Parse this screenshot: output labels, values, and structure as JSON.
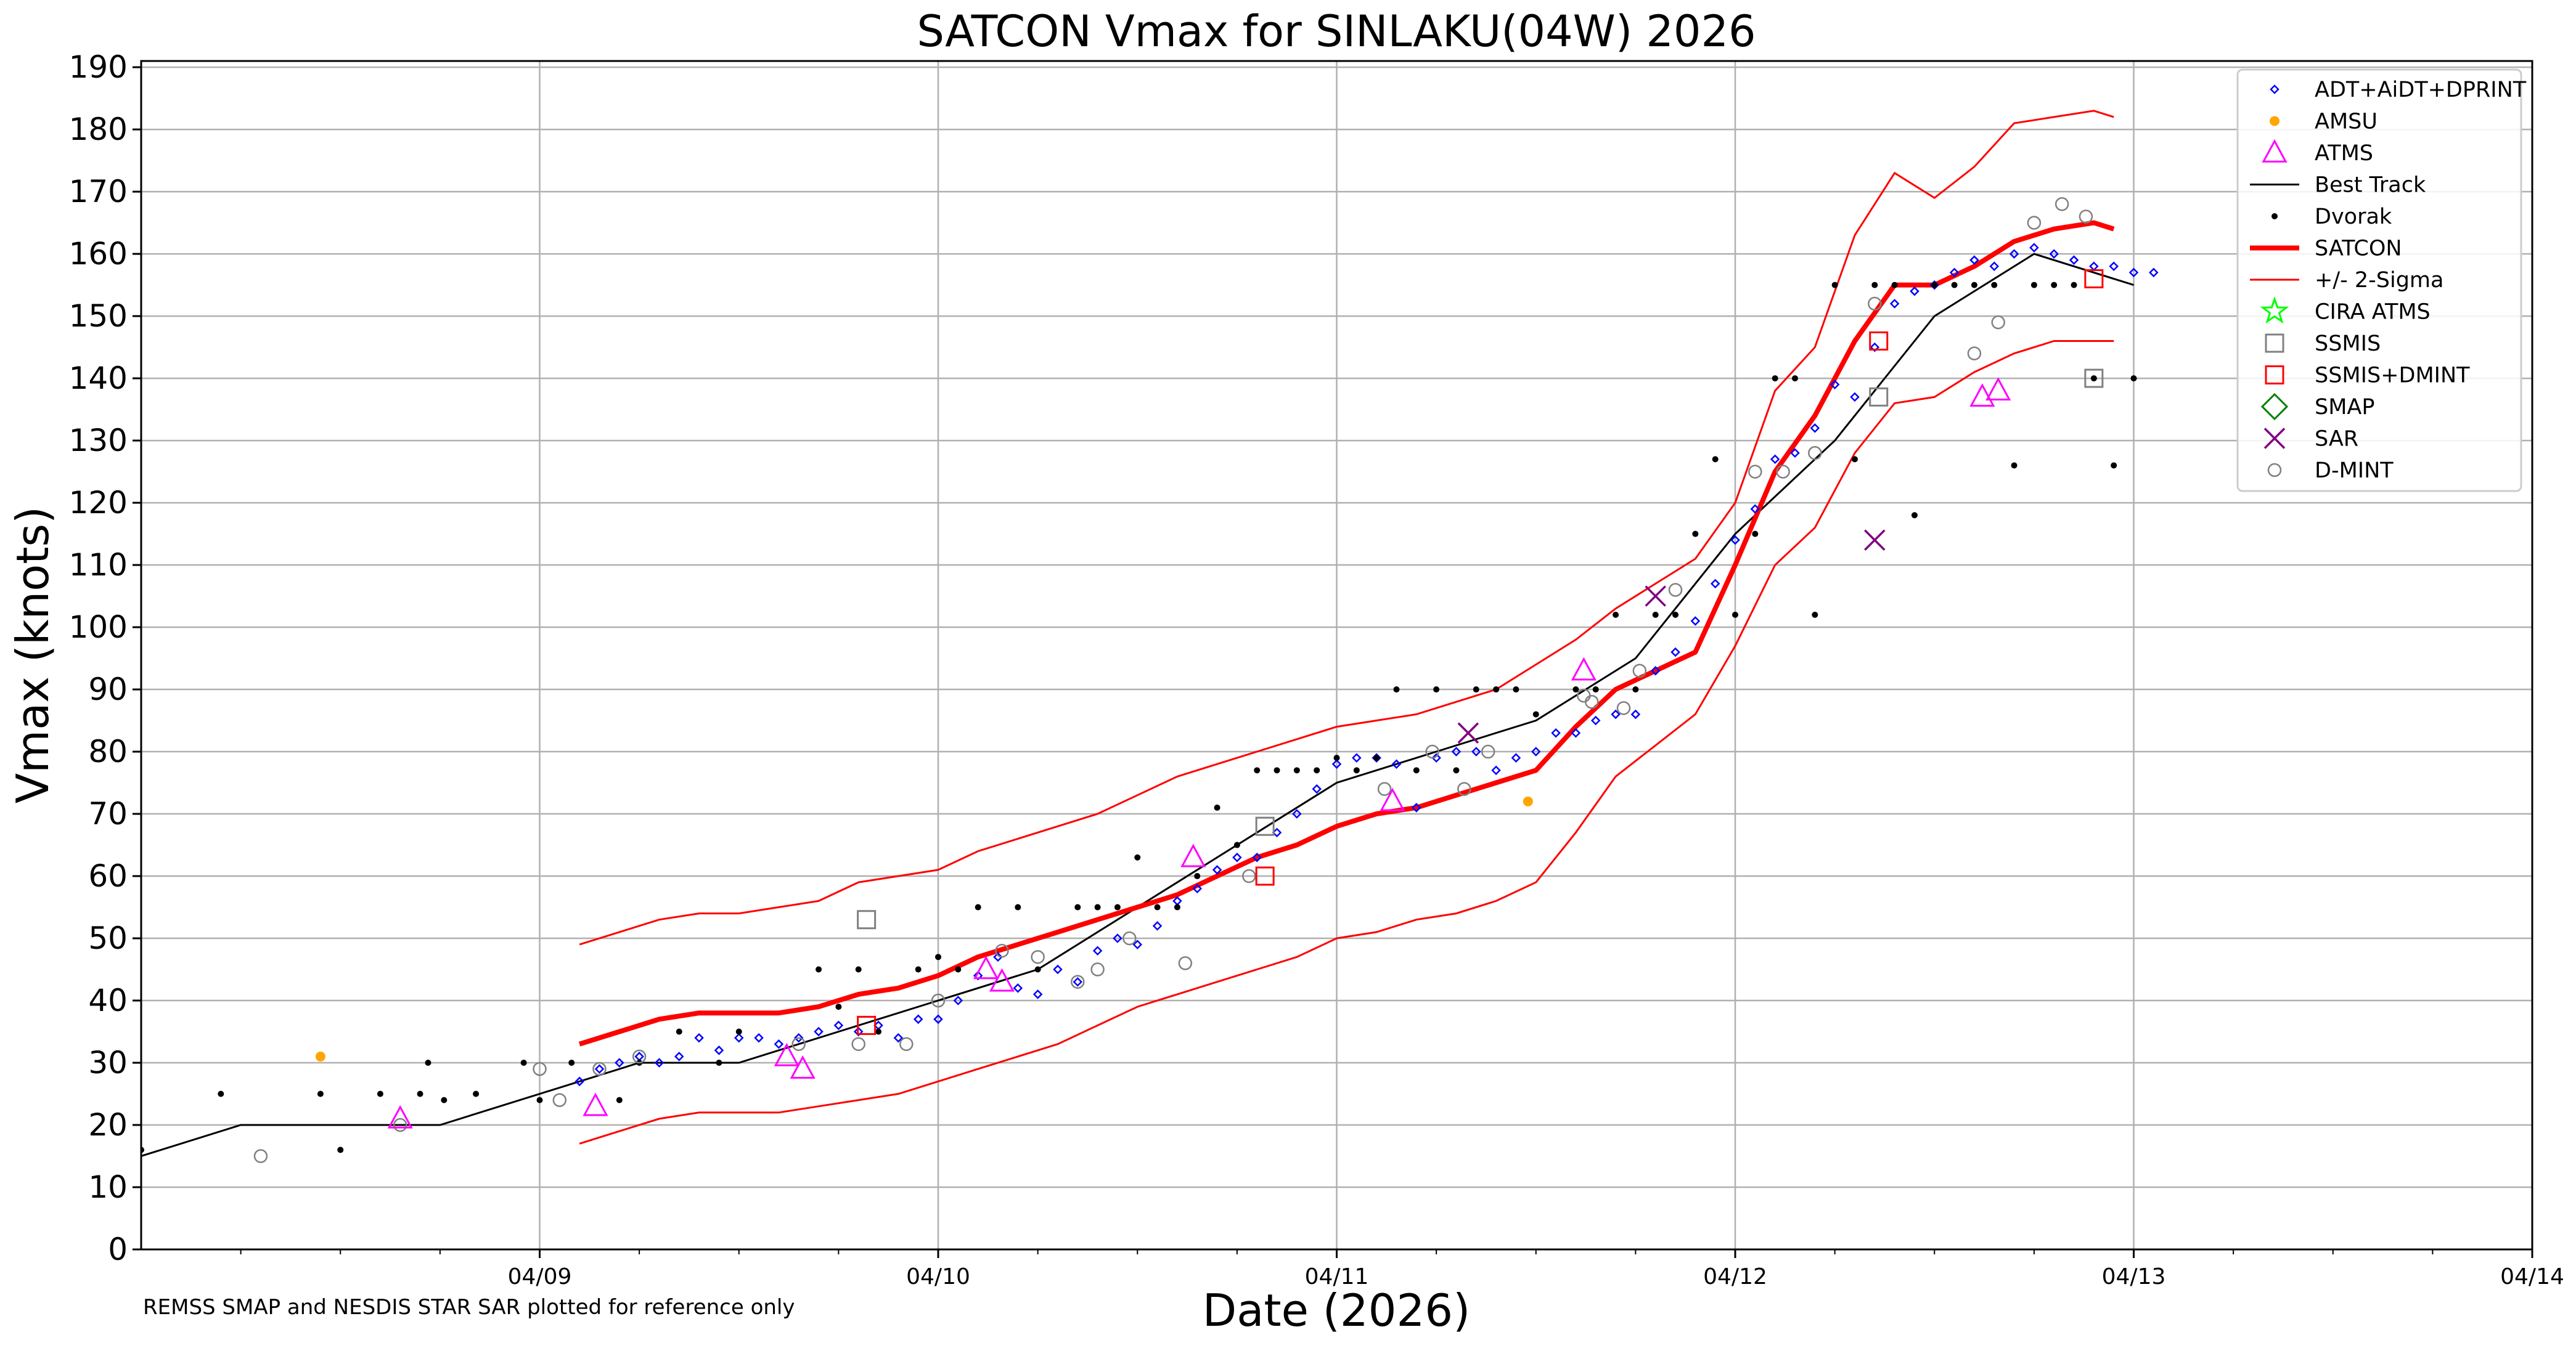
{
  "chart_data": {
    "type": "scatter",
    "title": "SATCON Vmax for SINLAKU(04W) 2026",
    "xlabel": "Date (2026)",
    "ylabel": "Vmax (knots)",
    "footnote": "REMSS SMAP and NESDIS STAR SAR plotted for reference only",
    "xlim": [
      8.0,
      14.0
    ],
    "ylim": [
      0,
      191
    ],
    "x_ticks": [
      9,
      10,
      11,
      12,
      13,
      14
    ],
    "x_tick_labels": [
      "04/09",
      "04/10",
      "04/11",
      "04/12",
      "04/13",
      "04/14"
    ],
    "y_ticks": [
      0,
      10,
      20,
      30,
      40,
      50,
      60,
      70,
      80,
      90,
      100,
      110,
      120,
      130,
      140,
      150,
      160,
      170,
      180,
      190
    ],
    "y_tick_labels": [
      "0",
      "10",
      "20",
      "30",
      "40",
      "50",
      "60",
      "70",
      "80",
      "90",
      "100",
      "110",
      "120",
      "130",
      "140",
      "150",
      "160",
      "170",
      "180",
      "190"
    ],
    "grid": true,
    "legend_position": "top-right",
    "colors": {
      "adt": "#0000ff",
      "amsu": "#ffa500",
      "atms": "#ff00ff",
      "best_track": "#000000",
      "dvorak": "#000000",
      "satcon": "#ff0000",
      "sigma": "#ff0000",
      "cira": "#00ff00",
      "ssmis": "#808080",
      "ssmis_dmint": "#ff0000",
      "smap": "#008000",
      "sar": "#800080",
      "dmint": "#808080"
    },
    "legend": [
      {
        "key": "adt",
        "label": "ADT+AiDT+DPRINT"
      },
      {
        "key": "amsu",
        "label": "AMSU"
      },
      {
        "key": "atms",
        "label": "ATMS"
      },
      {
        "key": "best_track",
        "label": "Best Track"
      },
      {
        "key": "dvorak",
        "label": "Dvorak"
      },
      {
        "key": "satcon",
        "label": "SATCON"
      },
      {
        "key": "sigma",
        "label": "+/- 2-Sigma"
      },
      {
        "key": "cira",
        "label": "CIRA ATMS"
      },
      {
        "key": "ssmis",
        "label": "SSMIS"
      },
      {
        "key": "ssmis_dmint",
        "label": "SSMIS+DMINT"
      },
      {
        "key": "smap",
        "label": "SMAP"
      },
      {
        "key": "sar",
        "label": "SAR"
      },
      {
        "key": "dmint",
        "label": "D-MINT"
      }
    ],
    "series": {
      "best_track": {
        "x": [
          8.0,
          8.25,
          8.5,
          8.75,
          9.0,
          9.25,
          9.5,
          9.75,
          10.0,
          10.25,
          10.5,
          10.75,
          11.0,
          11.25,
          11.5,
          11.75,
          12.0,
          12.25,
          12.5,
          12.75,
          13.0
        ],
        "y": [
          15,
          20,
          20,
          20,
          25,
          30,
          30,
          35,
          40,
          45,
          55,
          65,
          75,
          80,
          85,
          95,
          115,
          130,
          150,
          160,
          155
        ]
      },
      "satcon": {
        "x": [
          9.1,
          9.2,
          9.3,
          9.4,
          9.5,
          9.6,
          9.7,
          9.8,
          9.9,
          10.0,
          10.1,
          10.2,
          10.3,
          10.4,
          10.5,
          10.6,
          10.7,
          10.8,
          10.9,
          11.0,
          11.1,
          11.2,
          11.3,
          11.4,
          11.5,
          11.6,
          11.7,
          11.8,
          11.9,
          12.0,
          12.1,
          12.2,
          12.3,
          12.4,
          12.5,
          12.6,
          12.7,
          12.8,
          12.9,
          12.95
        ],
        "y": [
          33,
          35,
          37,
          38,
          38,
          38,
          39,
          41,
          42,
          44,
          47,
          49,
          51,
          53,
          55,
          57,
          60,
          63,
          65,
          68,
          70,
          71,
          73,
          75,
          77,
          84,
          90,
          93,
          96,
          110,
          125,
          134,
          146,
          155,
          155,
          158,
          162,
          164,
          165,
          164
        ]
      },
      "sigma_upper": {
        "x": [
          9.1,
          9.2,
          9.3,
          9.4,
          9.5,
          9.6,
          9.7,
          9.8,
          9.9,
          10.0,
          10.1,
          10.2,
          10.3,
          10.4,
          10.5,
          10.6,
          10.7,
          10.8,
          10.9,
          11.0,
          11.1,
          11.2,
          11.3,
          11.4,
          11.5,
          11.6,
          11.7,
          11.8,
          11.9,
          12.0,
          12.1,
          12.2,
          12.3,
          12.4,
          12.5,
          12.6,
          12.7,
          12.8,
          12.9,
          12.95
        ],
        "y": [
          49,
          51,
          53,
          54,
          54,
          55,
          56,
          59,
          60,
          61,
          64,
          66,
          68,
          70,
          73,
          76,
          78,
          80,
          82,
          84,
          85,
          86,
          88,
          90,
          94,
          98,
          103,
          107,
          111,
          120,
          138,
          145,
          163,
          173,
          169,
          174,
          181,
          182,
          183,
          182
        ]
      },
      "sigma_lower": {
        "x": [
          9.1,
          9.2,
          9.3,
          9.4,
          9.5,
          9.6,
          9.7,
          9.8,
          9.9,
          10.0,
          10.1,
          10.2,
          10.3,
          10.4,
          10.5,
          10.6,
          10.7,
          10.8,
          10.9,
          11.0,
          11.1,
          11.2,
          11.3,
          11.4,
          11.5,
          11.6,
          11.7,
          11.8,
          11.9,
          12.0,
          12.1,
          12.2,
          12.3,
          12.4,
          12.5,
          12.6,
          12.7,
          12.8,
          12.9,
          12.95
        ],
        "y": [
          17,
          19,
          21,
          22,
          22,
          22,
          23,
          24,
          25,
          27,
          29,
          31,
          33,
          36,
          39,
          41,
          43,
          45,
          47,
          50,
          51,
          53,
          54,
          56,
          59,
          67,
          76,
          81,
          86,
          97,
          110,
          116,
          128,
          136,
          137,
          141,
          144,
          146,
          146,
          146
        ]
      },
      "adt": {
        "x": [
          9.1,
          9.15,
          9.2,
          9.25,
          9.3,
          9.35,
          9.4,
          9.45,
          9.5,
          9.55,
          9.6,
          9.65,
          9.7,
          9.75,
          9.8,
          9.85,
          9.9,
          9.95,
          10.0,
          10.05,
          10.1,
          10.15,
          10.2,
          10.25,
          10.3,
          10.35,
          10.4,
          10.45,
          10.5,
          10.55,
          10.6,
          10.65,
          10.7,
          10.75,
          10.8,
          10.85,
          10.9,
          10.95,
          11.0,
          11.05,
          11.1,
          11.15,
          11.2,
          11.25,
          11.3,
          11.35,
          11.4,
          11.45,
          11.5,
          11.55,
          11.6,
          11.65,
          11.7,
          11.75,
          11.8,
          11.85,
          11.9,
          11.95,
          12.0,
          12.05,
          12.1,
          12.15,
          12.2,
          12.25,
          12.3,
          12.35,
          12.4,
          12.45,
          12.5,
          12.55,
          12.6,
          12.65,
          12.7,
          12.75,
          12.8,
          12.85,
          12.9,
          12.95,
          13.0,
          13.05
        ],
        "y": [
          27,
          29,
          30,
          31,
          30,
          31,
          34,
          32,
          34,
          34,
          33,
          34,
          35,
          36,
          35,
          36,
          34,
          37,
          37,
          40,
          44,
          47,
          42,
          41,
          45,
          43,
          48,
          50,
          49,
          52,
          56,
          58,
          61,
          63,
          63,
          67,
          70,
          74,
          78,
          79,
          79,
          78,
          71,
          79,
          80,
          80,
          77,
          79,
          80,
          83,
          83,
          85,
          86,
          86,
          93,
          96,
          101,
          107,
          114,
          119,
          127,
          128,
          132,
          139,
          137,
          145,
          152,
          154,
          155,
          157,
          159,
          158,
          160,
          161,
          160,
          159,
          158,
          158,
          157,
          157
        ]
      },
      "dvorak": {
        "x": [
          8.0,
          8.2,
          8.45,
          8.5,
          8.6,
          8.7,
          8.72,
          8.76,
          8.84,
          8.96,
          9.0,
          9.08,
          9.2,
          9.25,
          9.35,
          9.45,
          9.5,
          9.7,
          9.75,
          9.8,
          9.85,
          9.95,
          10.0,
          10.05,
          10.1,
          10.2,
          10.25,
          10.35,
          10.4,
          10.45,
          10.5,
          10.55,
          10.6,
          10.65,
          10.7,
          10.75,
          10.8,
          10.85,
          10.9,
          10.95,
          11.0,
          11.05,
          11.1,
          11.15,
          11.2,
          11.25,
          11.3,
          11.35,
          11.4,
          11.45,
          11.5,
          11.6,
          11.65,
          11.7,
          11.75,
          11.8,
          11.85,
          11.9,
          11.95,
          12.0,
          12.05,
          12.1,
          12.15,
          12.2,
          12.25,
          12.3,
          12.35,
          12.4,
          12.45,
          12.5,
          12.55,
          12.6,
          12.65,
          12.7,
          12.75,
          12.8,
          12.85,
          12.9,
          12.95,
          13.0
        ],
        "y": [
          16,
          25,
          25,
          16,
          25,
          25,
          30,
          24,
          25,
          30,
          24,
          30,
          24,
          30,
          35,
          30,
          35,
          45,
          39,
          45,
          35,
          45,
          47,
          45,
          55,
          55,
          45,
          55,
          55,
          55,
          63,
          55,
          55,
          60,
          71,
          65,
          77,
          77,
          77,
          77,
          79,
          77,
          79,
          90,
          77,
          90,
          77,
          90,
          90,
          90,
          86,
          90,
          90,
          102,
          90,
          102,
          102,
          115,
          127,
          102,
          115,
          140,
          140,
          102,
          155,
          127,
          155,
          155,
          118,
          155,
          155,
          155,
          155,
          126,
          155,
          155,
          155,
          140,
          126,
          140
        ]
      },
      "dmint": {
        "x": [
          8.3,
          8.65,
          9.0,
          9.05,
          9.15,
          9.25,
          9.65,
          9.8,
          9.92,
          10.0,
          10.16,
          10.25,
          10.35,
          10.4,
          10.48,
          10.62,
          10.78,
          11.12,
          11.24,
          11.32,
          11.38,
          11.62,
          11.64,
          11.72,
          11.76,
          11.85,
          12.05,
          12.12,
          12.2,
          12.35,
          12.6,
          12.66,
          12.75,
          12.82,
          12.88
        ],
        "y": [
          15,
          20,
          29,
          24,
          29,
          31,
          33,
          33,
          33,
          40,
          48,
          47,
          43,
          45,
          50,
          46,
          60,
          74,
          80,
          74,
          80,
          89,
          88,
          87,
          93,
          106,
          125,
          125,
          128,
          152,
          144,
          149,
          165,
          168,
          166
        ]
      },
      "atms": {
        "x": [
          8.65,
          9.14,
          9.62,
          9.66,
          10.12,
          10.16,
          10.64,
          11.14,
          11.62,
          12.62,
          12.66
        ],
        "y": [
          21,
          23,
          31,
          29,
          45,
          43,
          63,
          72,
          93,
          137,
          138
        ]
      },
      "amsu": {
        "x": [
          8.45,
          11.48
        ],
        "y": [
          31,
          72
        ]
      },
      "ssmis": {
        "x": [
          9.82,
          10.82,
          12.36,
          12.9
        ],
        "y": [
          53,
          68,
          137,
          140
        ]
      },
      "ssmis_dmint": {
        "x": [
          9.82,
          10.82,
          12.36,
          12.9
        ],
        "y": [
          36,
          60,
          146,
          156
        ]
      },
      "sar": {
        "x": [
          11.33,
          11.8,
          12.35
        ],
        "y": [
          83,
          105,
          114
        ]
      },
      "smap": {
        "x": [],
        "y": []
      },
      "cira": {
        "x": [],
        "y": []
      }
    }
  }
}
